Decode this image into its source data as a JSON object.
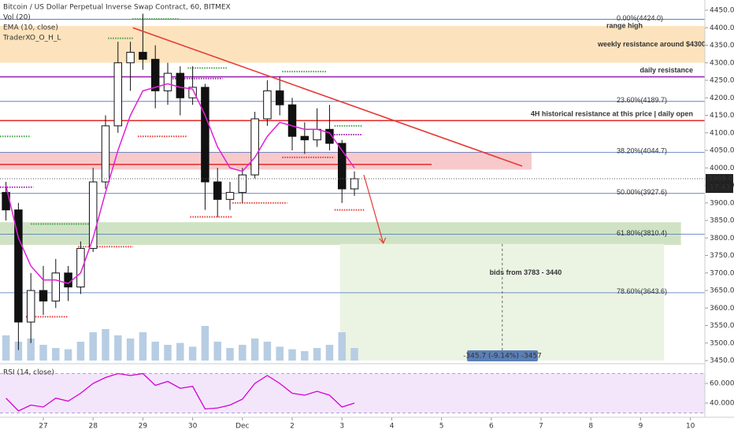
{
  "chart_data": {
    "type": "candlestick",
    "title": "Bitcoin / US Dollar Perpetual Inverse Swap Contract, 60, BITMEX",
    "indicators": [
      "Vol (20)",
      "EMA (10, close)",
      "TraderXO_O_H_L"
    ],
    "rsi_title": "RSI (14, close)",
    "x": [
      26.25,
      26.5,
      26.75,
      27,
      27.25,
      27.5,
      27.75,
      28,
      28.25,
      28.5,
      28.75,
      29,
      29.25,
      29.5,
      29.75,
      30,
      30.25,
      30.5,
      30.75,
      31,
      31.25,
      31.5,
      31.75,
      32,
      32.25,
      32.5,
      32.75,
      33,
      33.25
    ],
    "open": [
      3930,
      3880,
      3560,
      3650,
      3620,
      3700,
      3660,
      3770,
      3960,
      4120,
      4300,
      4330,
      4310,
      4220,
      4270,
      4200,
      4230,
      3960,
      3910,
      3930,
      3980,
      4140,
      4220,
      4180,
      4090,
      4080,
      4110,
      4070,
      3940
    ],
    "high": [
      3960,
      3900,
      3700,
      3720,
      3740,
      3720,
      3790,
      4000,
      4150,
      4360,
      4360,
      4440,
      4350,
      4300,
      4290,
      4290,
      4240,
      4000,
      3960,
      4000,
      4160,
      4250,
      4260,
      4200,
      4130,
      4170,
      4180,
      4080,
      3990
    ],
    "low": [
      3850,
      3480,
      3500,
      3580,
      3600,
      3620,
      3640,
      3760,
      3940,
      4100,
      4220,
      4280,
      4170,
      4180,
      4150,
      4180,
      3880,
      3860,
      3880,
      3900,
      3970,
      4120,
      4150,
      4050,
      4040,
      4060,
      4050,
      3900,
      3920
    ],
    "close": [
      3880,
      3560,
      3650,
      3620,
      3700,
      3660,
      3770,
      3960,
      4120,
      4300,
      4330,
      4310,
      4220,
      4270,
      4200,
      4230,
      3960,
      3910,
      3930,
      3980,
      4140,
      4220,
      4180,
      4090,
      4080,
      4110,
      4070,
      3940,
      3969
    ],
    "ema": [
      3950,
      3800,
      3720,
      3680,
      3680,
      3670,
      3700,
      3800,
      3930,
      4050,
      4150,
      4220,
      4230,
      4240,
      4230,
      4225,
      4150,
      4060,
      4000,
      3990,
      4030,
      4090,
      4130,
      4120,
      4110,
      4110,
      4100,
      4050,
      4000
    ],
    "ema_color": "#e020d8",
    "volume": [
      40,
      30,
      35,
      25,
      20,
      18,
      30,
      45,
      50,
      40,
      35,
      45,
      30,
      25,
      28,
      22,
      55,
      30,
      20,
      25,
      35,
      30,
      22,
      18,
      15,
      20,
      25,
      45,
      20
    ],
    "volume_ylim": [
      0,
      100
    ],
    "rsi": [
      45,
      32,
      38,
      36,
      45,
      42,
      50,
      60,
      66,
      70,
      68,
      70,
      58,
      62,
      55,
      57,
      34,
      35,
      38,
      44,
      60,
      68,
      60,
      50,
      48,
      52,
      48,
      36,
      40
    ],
    "rsi_ylim": [
      27.2,
      75.2
    ],
    "rsi_band": [
      30,
      70
    ],
    "rsi_yticks": [
      {
        "value": 60,
        "label": "60.0000"
      },
      {
        "value": 40,
        "label": "40.0000"
      }
    ],
    "xlim": [
      26.13,
      40.29
    ],
    "xticks": [
      {
        "value": 27,
        "label": "27"
      },
      {
        "value": 28,
        "label": "28"
      },
      {
        "value": 29,
        "label": "29"
      },
      {
        "value": 30,
        "label": "30"
      },
      {
        "value": 31,
        "label": "Dec"
      },
      {
        "value": 32,
        "label": "2"
      },
      {
        "value": 33,
        "label": "3"
      },
      {
        "value": 34,
        "label": "4"
      },
      {
        "value": 35,
        "label": "5"
      },
      {
        "value": 36,
        "label": "6"
      },
      {
        "value": 37,
        "label": "7"
      },
      {
        "value": 38,
        "label": "8"
      },
      {
        "value": 39,
        "label": "9"
      },
      {
        "value": 40,
        "label": "10"
      }
    ],
    "ylim": [
      3450,
      4450
    ],
    "yticks": [
      {
        "value": 3450,
        "label": "3450.0"
      },
      {
        "value": 3500,
        "label": "3500.0"
      },
      {
        "value": 3550,
        "label": "3550.0"
      },
      {
        "value": 3600,
        "label": "3600.0"
      },
      {
        "value": 3650,
        "label": "3650.0"
      },
      {
        "value": 3700,
        "label": "3700.0"
      },
      {
        "value": 3750,
        "label": "3750.0"
      },
      {
        "value": 3800,
        "label": "3800.0"
      },
      {
        "value": 3850,
        "label": "3850.0"
      },
      {
        "value": 3900,
        "label": "3900.0"
      },
      {
        "value": 3950,
        "label": "3950.0"
      },
      {
        "value": 4000,
        "label": "4000.0"
      },
      {
        "value": 4050,
        "label": "4050.0"
      },
      {
        "value": 4100,
        "label": "4100.0"
      },
      {
        "value": 4150,
        "label": "4150.0"
      },
      {
        "value": 4200,
        "label": "4200.0"
      },
      {
        "value": 4250,
        "label": "4250.0"
      },
      {
        "value": 4300,
        "label": "4300.0"
      },
      {
        "value": 4350,
        "label": "4350.0"
      },
      {
        "value": 4400,
        "label": "4400.0"
      },
      {
        "value": 4450,
        "label": "4450.0"
      }
    ],
    "current_price": {
      "value": 3969.0,
      "label": "3969.0"
    },
    "countdown": "17:43",
    "fib_levels": [
      {
        "value": 4424.0,
        "label": "0.00%(4424.0)"
      },
      {
        "value": 4189.7,
        "label": "23.60%(4189.7)"
      },
      {
        "value": 4044.7,
        "label": "38.20%(4044.7)"
      },
      {
        "value": 3927.6,
        "label": "50.00%(3927.6)"
      },
      {
        "value": 3810.4,
        "label": "61.80%(3810.4)"
      },
      {
        "value": 3643.6,
        "label": "78.60%(3643.6)"
      }
    ],
    "fib_color": "#4a6fb5",
    "zones": [
      {
        "low": 4300,
        "high": 4405,
        "start": 26.13,
        "end": 40.29,
        "color": "#fde3bd",
        "label": "weekly resistance around $4300",
        "label_color": "#e53935"
      },
      {
        "low": 3995,
        "high": 4045,
        "start": 26.13,
        "end": 36.81,
        "color": "#f8c9cb"
      },
      {
        "low": 3780,
        "high": 3845,
        "start": 26.13,
        "end": 39.81,
        "color": "#cfe3c4"
      },
      {
        "low": 3440,
        "high": 3783,
        "start": 32.96,
        "end": 39.47,
        "color": "#ebf4e3",
        "label": "bids from 3783 - 3440",
        "label_color": "#6a9a3c"
      }
    ],
    "range_high": {
      "value": 4405,
      "label": "range high"
    },
    "hlines": [
      {
        "value": 4260,
        "color": "#9c27b0",
        "label": "daily resistance",
        "start": 26.13,
        "end": 40.29
      },
      {
        "value": 4135,
        "color": "#e53935",
        "label": "4H historical resistance at this price | daily open",
        "start": 26.13,
        "end": 40.29
      },
      {
        "value": 4010,
        "color": "#e53935",
        "start": 26.13,
        "end": 34.8
      }
    ],
    "trendline": {
      "x": [
        28.8,
        36.62
      ],
      "y": [
        4400,
        4005
      ],
      "color": "#e53935"
    },
    "arrow": {
      "x": [
        33.44,
        33.83
      ],
      "y": [
        3980,
        3785
      ],
      "color": "#e53935"
    },
    "measure": {
      "vline": 36.22,
      "label": "-345.7 (-9.14%) -3457"
    },
    "dotted_levels": [
      {
        "value": 4425,
        "start": 28.79,
        "end": 29.74,
        "color": "#43a047"
      },
      {
        "value": 4370,
        "start": 28.3,
        "end": 28.8,
        "color": "#43a047"
      },
      {
        "value": 4285,
        "start": 29.9,
        "end": 30.7,
        "color": "#43a047"
      },
      {
        "value": 4275,
        "start": 31.8,
        "end": 32.7,
        "color": "#43a047"
      },
      {
        "value": 4120,
        "start": 32.85,
        "end": 33.4,
        "color": "#43a047"
      },
      {
        "value": 4090,
        "start": 26.13,
        "end": 26.75,
        "color": "#43a047"
      },
      {
        "value": 3840,
        "start": 26.75,
        "end": 27.95,
        "color": "#43a047"
      },
      {
        "value": 4255,
        "start": 29.5,
        "end": 30.6,
        "color": "#9c27b0"
      },
      {
        "value": 4095,
        "start": 32.7,
        "end": 33.4,
        "color": "#9c27b0"
      },
      {
        "value": 3945,
        "start": 26.13,
        "end": 26.8,
        "color": "#9c27b0"
      },
      {
        "value": 4090,
        "start": 28.9,
        "end": 29.9,
        "color": "#e53935"
      },
      {
        "value": 4030,
        "start": 31.8,
        "end": 32.85,
        "color": "#e53935"
      },
      {
        "value": 3900,
        "start": 30.8,
        "end": 31.9,
        "color": "#e53935"
      },
      {
        "value": 3880,
        "start": 32.85,
        "end": 33.45,
        "color": "#e53935"
      },
      {
        "value": 3860,
        "start": 29.95,
        "end": 30.8,
        "color": "#e53935"
      },
      {
        "value": 3775,
        "start": 27.7,
        "end": 28.8,
        "color": "#e53935"
      },
      {
        "value": 3575,
        "start": 26.65,
        "end": 27.5,
        "color": "#e53935"
      }
    ]
  }
}
